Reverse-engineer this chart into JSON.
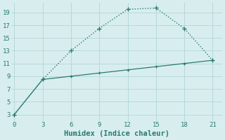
{
  "line1_x": [
    0,
    3,
    6,
    9,
    12,
    15,
    18,
    21
  ],
  "line1_y": [
    3,
    8.5,
    13,
    16.5,
    19.5,
    19.7,
    16.5,
    11.5
  ],
  "line2_x": [
    0,
    3,
    6,
    9,
    12,
    15,
    18,
    21
  ],
  "line2_y": [
    3,
    8.5,
    9.0,
    9.5,
    10.0,
    10.5,
    11.0,
    11.5
  ],
  "line_color": "#2a7a6e",
  "bg_color": "#d8eeee",
  "grid_color": "#b8d8d8",
  "xlabel": "Humidex (Indice chaleur)",
  "xlabel_fontsize": 7.5,
  "xticks": [
    0,
    3,
    6,
    9,
    12,
    15,
    18,
    21
  ],
  "yticks": [
    3,
    5,
    7,
    9,
    11,
    13,
    15,
    17,
    19
  ],
  "xlim": [
    -0.3,
    22
  ],
  "ylim": [
    2.0,
    20.5
  ]
}
